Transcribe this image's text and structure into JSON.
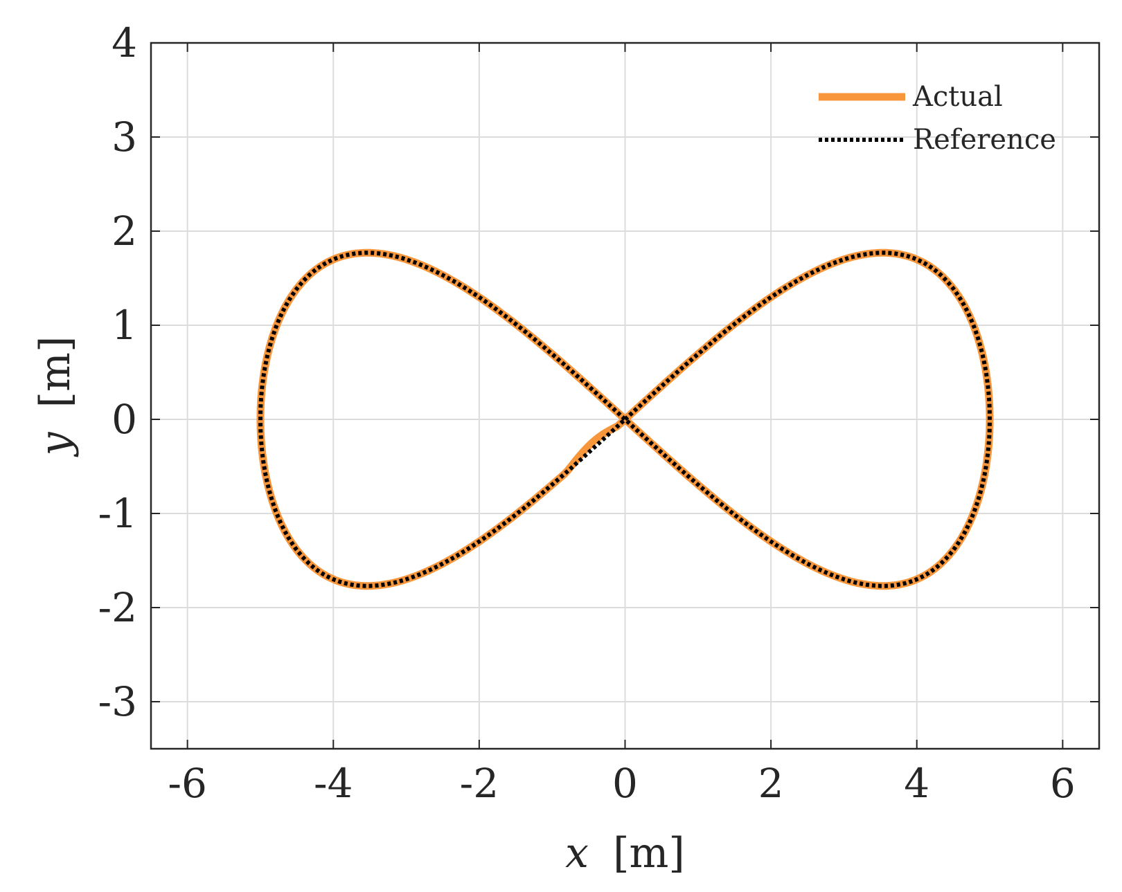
{
  "chart_data": {
    "type": "line",
    "xlabel_var": "x",
    "xlabel_unit": "[m]",
    "ylabel_var": "y",
    "ylabel_unit": "[m]",
    "xlim": [
      -6.5,
      6.5
    ],
    "ylim": [
      -3.5,
      4
    ],
    "xticks": [
      -6,
      -4,
      -2,
      0,
      2,
      4,
      6
    ],
    "xtick_labels": [
      "-6",
      "-4",
      "-2",
      "0",
      "2",
      "4",
      "6"
    ],
    "yticks": [
      -3,
      -2,
      -1,
      0,
      1,
      2,
      3,
      4
    ],
    "ytick_labels": [
      "-3",
      "-2",
      "-1",
      "0",
      "1",
      "2",
      "3",
      "4"
    ],
    "grid": true,
    "legend_position": "top-right",
    "curve": {
      "shape": "figure-eight (lemniscate of Gerono)",
      "x_amplitude": 5,
      "y_amplitude": 3.54,
      "x_range": [
        -5,
        5
      ],
      "y_range": [
        -1.77,
        1.77
      ]
    },
    "series": [
      {
        "name": "Actual",
        "color": "#f7963b",
        "style": "solid",
        "deviation": {
          "description": "small wobble near origin in the lower-left lobe",
          "x_range": [
            -0.8,
            -0.1
          ],
          "y_offset": 0.07
        }
      },
      {
        "name": "Reference",
        "color": "#000000",
        "style": "dotted"
      }
    ]
  }
}
